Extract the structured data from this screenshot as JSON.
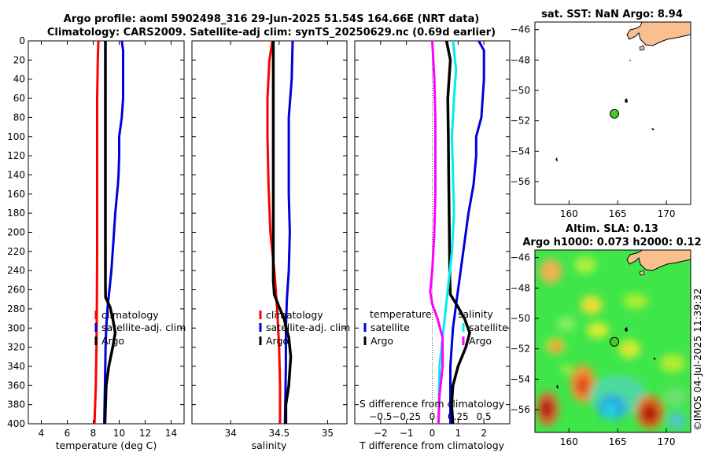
{
  "header": {
    "line1": "Argo profile: aoml 5902498_316 29-Jun-2025 51.54S 164.66E (NRT data)",
    "line2": "Climatology: CARS2009. Satellite-adj clim: synTS_20250629.nc (0.69d earlier)"
  },
  "colors": {
    "climatology": "#ff0000",
    "satellite": "#0000dd",
    "argo": "#000000",
    "salinity_sat": "#00eeee",
    "salinity_diff": "#ff00ff",
    "land": "#f9bf8f",
    "float_marker": "#44cc22"
  },
  "panels": {
    "temperature": {
      "xlabel": "temperature (deg C)"
    },
    "salinity": {
      "xlabel": "salinity"
    },
    "difference": {
      "xlabel": "T difference from climatology",
      "s_axis_label": "S difference from climatology",
      "legend_temperature_title": "temperature",
      "legend_salinity_title": "salinity"
    }
  },
  "legend": {
    "climatology": "climatology",
    "satellite_adj": "satellite-adj. clim",
    "argo": "Argo",
    "satellite": "satellite"
  },
  "maps": {
    "sst_title": "sat. SST: NaN Argo: 8.94",
    "sla_title1": "Altim. SLA: 0.13",
    "sla_title2": "Argo h1000: 0.073 h2000: 0.12",
    "float_lon": 164.66,
    "float_lat": -51.54
  },
  "credit": "©IMOS 04-Jul-2025 11:39:32",
  "chart_data": [
    {
      "type": "line",
      "name": "temperature-profile",
      "xlabel": "temperature (deg C)",
      "ylabel": "depth",
      "xlim": [
        3,
        15
      ],
      "ylim": [
        400,
        0
      ],
      "xticks": [
        4,
        6,
        8,
        10,
        12,
        14
      ],
      "yticks": [
        0,
        20,
        40,
        60,
        80,
        100,
        120,
        140,
        160,
        180,
        200,
        220,
        240,
        260,
        280,
        300,
        320,
        340,
        360,
        380,
        400
      ],
      "series": [
        {
          "name": "climatology",
          "color": "#ff0000",
          "points": [
            [
              8.4,
              0
            ],
            [
              8.35,
              20
            ],
            [
              8.3,
              60
            ],
            [
              8.3,
              100
            ],
            [
              8.3,
              160
            ],
            [
              8.3,
              220
            ],
            [
              8.28,
              280
            ],
            [
              8.25,
              320
            ],
            [
              8.2,
              360
            ],
            [
              8.1,
              400
            ]
          ]
        },
        {
          "name": "satellite-adj. clim",
          "color": "#0000dd",
          "points": [
            [
              10.2,
              0
            ],
            [
              10.3,
              10
            ],
            [
              10.3,
              40
            ],
            [
              10.3,
              60
            ],
            [
              10.2,
              80
            ],
            [
              10.0,
              100
            ],
            [
              10.0,
              120
            ],
            [
              9.95,
              140
            ],
            [
              9.9,
              150
            ],
            [
              9.7,
              180
            ],
            [
              9.55,
              210
            ],
            [
              9.4,
              240
            ],
            [
              9.25,
              260
            ],
            [
              9.1,
              280
            ],
            [
              9.0,
              300
            ],
            [
              8.95,
              320
            ],
            [
              8.9,
              360
            ],
            [
              8.85,
              400
            ]
          ]
        },
        {
          "name": "Argo",
          "color": "#000000",
          "points": [
            [
              8.94,
              0
            ],
            [
              8.94,
              50
            ],
            [
              8.94,
              100
            ],
            [
              8.94,
              150
            ],
            [
              8.94,
              200
            ],
            [
              8.94,
              250
            ],
            [
              8.95,
              268
            ],
            [
              9.3,
              278
            ],
            [
              9.5,
              290
            ],
            [
              9.7,
              305
            ],
            [
              9.5,
              320
            ],
            [
              9.2,
              340
            ],
            [
              9.0,
              360
            ],
            [
              8.95,
              380
            ],
            [
              8.9,
              400
            ]
          ]
        }
      ]
    },
    {
      "type": "line",
      "name": "salinity-profile",
      "xlabel": "salinity",
      "ylabel": "depth",
      "xlim": [
        33.6,
        35.2
      ],
      "ylim": [
        400,
        0
      ],
      "xticks": [
        34,
        34.5,
        35
      ],
      "series": [
        {
          "name": "climatology",
          "color": "#ff0000",
          "points": [
            [
              34.43,
              0
            ],
            [
              34.4,
              20
            ],
            [
              34.38,
              60
            ],
            [
              34.38,
              100
            ],
            [
              34.39,
              150
            ],
            [
              34.41,
              200
            ],
            [
              34.45,
              240
            ],
            [
              34.48,
              280
            ],
            [
              34.5,
              320
            ],
            [
              34.51,
              360
            ],
            [
              34.51,
              400
            ]
          ]
        },
        {
          "name": "satellite-adj. clim",
          "color": "#0000dd",
          "points": [
            [
              34.64,
              0
            ],
            [
              34.63,
              40
            ],
            [
              34.6,
              80
            ],
            [
              34.6,
              120
            ],
            [
              34.6,
              160
            ],
            [
              34.61,
              200
            ],
            [
              34.6,
              240
            ],
            [
              34.58,
              270
            ],
            [
              34.57,
              300
            ],
            [
              34.57,
              340
            ],
            [
              34.56,
              400
            ]
          ]
        },
        {
          "name": "Argo",
          "color": "#000000",
          "points": [
            [
              34.44,
              0
            ],
            [
              34.44,
              50
            ],
            [
              34.44,
              100
            ],
            [
              34.44,
              150
            ],
            [
              34.44,
              200
            ],
            [
              34.44,
              250
            ],
            [
              34.45,
              265
            ],
            [
              34.5,
              278
            ],
            [
              34.55,
              290
            ],
            [
              34.6,
              310
            ],
            [
              34.62,
              330
            ],
            [
              34.6,
              360
            ],
            [
              34.57,
              380
            ],
            [
              34.57,
              400
            ]
          ]
        }
      ]
    },
    {
      "type": "line",
      "name": "difference-profile",
      "xlabel": "T difference from climatology",
      "x2label": "S difference from climatology",
      "xlim": [
        -3,
        3
      ],
      "x2lim": [
        -0.75,
        0.75
      ],
      "ylim": [
        400,
        0
      ],
      "xticks": [
        -2,
        -1,
        0,
        1,
        2
      ],
      "x2ticks": [
        -0.5,
        -0.25,
        0,
        0.25,
        0.5
      ],
      "series": [
        {
          "name": "temperature satellite",
          "axis": "T",
          "color": "#0000dd",
          "points": [
            [
              1.8,
              0
            ],
            [
              2.0,
              10
            ],
            [
              2.0,
              40
            ],
            [
              1.9,
              80
            ],
            [
              1.7,
              100
            ],
            [
              1.7,
              120
            ],
            [
              1.6,
              150
            ],
            [
              1.4,
              180
            ],
            [
              1.2,
              220
            ],
            [
              1.0,
              260
            ],
            [
              0.8,
              300
            ],
            [
              0.7,
              340
            ],
            [
              0.7,
              400
            ]
          ]
        },
        {
          "name": "temperature Argo",
          "axis": "T",
          "color": "#000000",
          "points": [
            [
              0.55,
              0
            ],
            [
              0.7,
              20
            ],
            [
              0.6,
              60
            ],
            [
              0.62,
              100
            ],
            [
              0.64,
              150
            ],
            [
              0.66,
              200
            ],
            [
              0.68,
              250
            ],
            [
              0.7,
              265
            ],
            [
              1.0,
              278
            ],
            [
              1.25,
              290
            ],
            [
              1.45,
              305
            ],
            [
              1.3,
              320
            ],
            [
              1.0,
              340
            ],
            [
              0.8,
              360
            ],
            [
              0.75,
              380
            ],
            [
              0.8,
              400
            ]
          ]
        },
        {
          "name": "salinity satellite",
          "axis": "S",
          "color": "#00eeee",
          "points": [
            [
              0.2,
              0
            ],
            [
              0.23,
              30
            ],
            [
              0.21,
              60
            ],
            [
              0.19,
              100
            ],
            [
              0.2,
              140
            ],
            [
              0.21,
              180
            ],
            [
              0.19,
              220
            ],
            [
              0.16,
              250
            ],
            [
              0.13,
              280
            ],
            [
              0.1,
              310
            ],
            [
              0.07,
              340
            ],
            [
              0.06,
              400
            ]
          ]
        },
        {
          "name": "salinity Argo",
          "axis": "S",
          "color": "#ff00ff",
          "points": [
            [
              0.0,
              0
            ],
            [
              0.02,
              40
            ],
            [
              0.03,
              80
            ],
            [
              0.03,
              120
            ],
            [
              0.03,
              160
            ],
            [
              0.02,
              200
            ],
            [
              0.0,
              240
            ],
            [
              -0.02,
              262
            ],
            [
              0.0,
              275
            ],
            [
              0.05,
              290
            ],
            [
              0.1,
              310
            ],
            [
              0.1,
              340
            ],
            [
              0.07,
              370
            ],
            [
              0.06,
              400
            ]
          ]
        }
      ]
    },
    {
      "type": "scatter",
      "name": "sst-map",
      "title": "sat. SST: NaN Argo: 8.94",
      "xlim": [
        156.5,
        172.5
      ],
      "ylim": [
        -57.5,
        -45.5
      ],
      "xticks": [
        160,
        165,
        170
      ],
      "yticks": [
        -46,
        -48,
        -50,
        -52,
        -54,
        -56
      ],
      "points": [
        {
          "lon": 164.66,
          "lat": -51.54
        }
      ]
    },
    {
      "type": "heatmap",
      "name": "sla-map",
      "title": "Altim. SLA: 0.13",
      "subtitle": "Argo h1000: 0.073 h2000: 0.12",
      "xlim": [
        156.5,
        172.5
      ],
      "ylim": [
        -57.5,
        -45.5
      ],
      "xticks": [
        160,
        165,
        170
      ],
      "yticks": [
        -46,
        -48,
        -50,
        -52,
        -54,
        -56
      ],
      "points": [
        {
          "lon": 164.66,
          "lat": -51.54
        }
      ]
    }
  ]
}
